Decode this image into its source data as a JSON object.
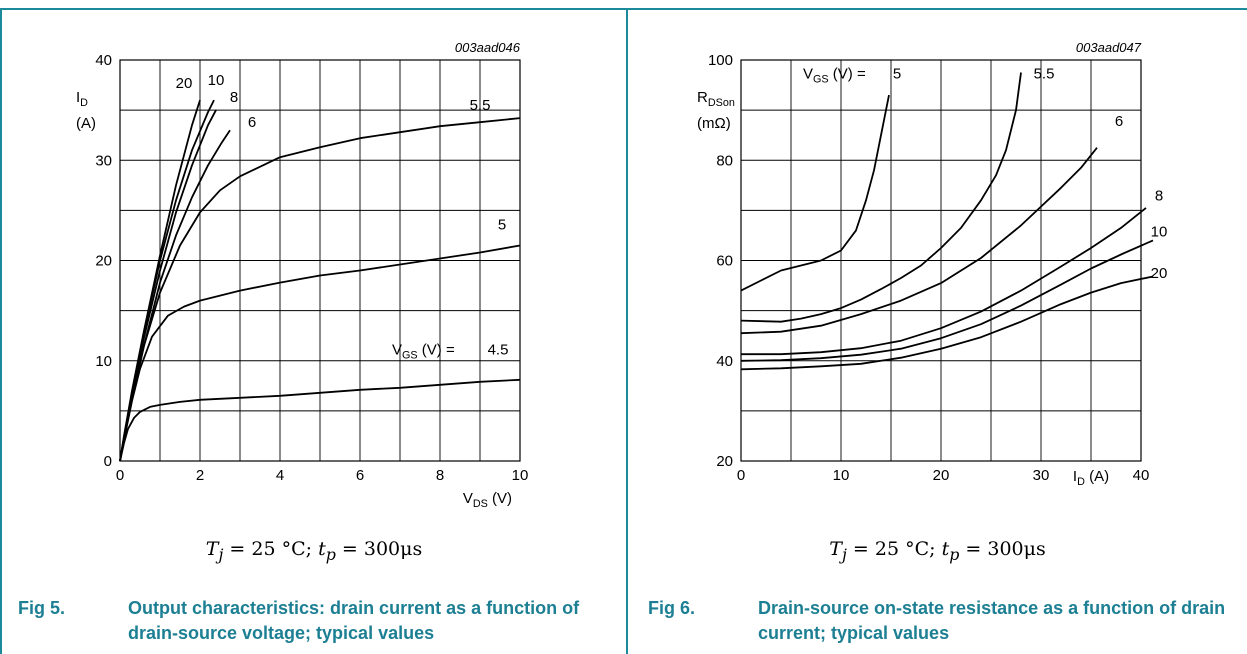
{
  "chart_data": [
    {
      "type": "line",
      "code": "003aad046",
      "xlabel": {
        "main": "V",
        "sub": "DS",
        "unit": " (V)"
      },
      "ylabel": {
        "main": "I",
        "sub": "D",
        "unit": "(A)"
      },
      "xlim": [
        0,
        10
      ],
      "ylim": [
        0,
        40
      ],
      "x_ticks": [
        "0",
        "2",
        "4",
        "6",
        "8",
        "10"
      ],
      "y_ticks": [
        "0",
        "10",
        "20",
        "30",
        "40"
      ],
      "grid": true,
      "vgs_prefix": {
        "main": "V",
        "sub": "GS",
        "unit": " (V) ="
      },
      "series": [
        {
          "name": "20",
          "x": [
            0,
            0.1,
            0.3,
            0.6,
            1.0,
            1.4,
            1.8,
            2.0
          ],
          "y": [
            0,
            2.5,
            7,
            13,
            20.5,
            27.5,
            33.5,
            36
          ]
        },
        {
          "name": "10",
          "x": [
            0,
            0.1,
            0.3,
            0.6,
            1.0,
            1.4,
            1.8,
            2.2,
            2.35
          ],
          "y": [
            0,
            2.4,
            6.8,
            12.8,
            20,
            26,
            31,
            34.8,
            36
          ]
        },
        {
          "name": "8",
          "x": [
            0,
            0.1,
            0.3,
            0.6,
            1.0,
            1.4,
            1.8,
            2.2,
            2.4
          ],
          "y": [
            0,
            2.3,
            6.5,
            12.3,
            19,
            24.8,
            29.5,
            33.5,
            35
          ]
        },
        {
          "name": "6",
          "x": [
            0,
            0.1,
            0.3,
            0.6,
            1.0,
            1.4,
            1.8,
            2.2,
            2.55,
            2.75
          ],
          "y": [
            0,
            2.2,
            6.2,
            11.5,
            17.8,
            22.5,
            26.3,
            29.5,
            31.8,
            33
          ]
        },
        {
          "name": "5.5",
          "x": [
            0,
            0.1,
            0.3,
            0.6,
            1.0,
            1.5,
            2.0,
            2.5,
            3.0,
            4.0,
            5.0,
            6.0,
            7.0,
            8.0,
            9.0,
            10.0
          ],
          "y": [
            0,
            2.2,
            6.2,
            11.5,
            16.8,
            21.5,
            24.8,
            27,
            28.4,
            30.3,
            31.3,
            32.2,
            32.8,
            33.4,
            33.8,
            34.2
          ]
        },
        {
          "name": "5",
          "x": [
            0,
            0.1,
            0.3,
            0.5,
            0.8,
            1.2,
            1.6,
            2.0,
            3.0,
            4.0,
            5.0,
            6.0,
            7.0,
            8.0,
            9.0,
            10.0
          ],
          "y": [
            0,
            2.1,
            6,
            9.2,
            12.4,
            14.5,
            15.4,
            16,
            17,
            17.8,
            18.5,
            19,
            19.6,
            20.2,
            20.8,
            21.5
          ]
        },
        {
          "name": "4.5",
          "x": [
            0,
            0.1,
            0.2,
            0.35,
            0.5,
            0.75,
            1.0,
            1.5,
            2.0,
            3.0,
            4.0,
            5.0,
            6.0,
            7.0,
            8.0,
            9.0,
            10.0
          ],
          "y": [
            0,
            1.8,
            3.2,
            4.3,
            4.9,
            5.4,
            5.6,
            5.9,
            6.1,
            6.3,
            6.5,
            6.8,
            7.1,
            7.3,
            7.6,
            7.9,
            8.1
          ]
        }
      ],
      "label_pos": {
        "20": [
          1.6,
          37.2
        ],
        "10": [
          2.4,
          37.5
        ],
        "8": [
          2.85,
          35.8
        ],
        "6": [
          3.3,
          33.3
        ],
        "5.5": [
          9.0,
          35.0
        ],
        "5": [
          9.55,
          23.1
        ],
        "4.5": [
          9.45,
          10.6
        ]
      },
      "vgs_prefix_pos": [
        6.8,
        10.6
      ]
    },
    {
      "type": "line",
      "code": "003aad047",
      "xlabel": {
        "main": "I",
        "sub": "D",
        "unit": " (A)"
      },
      "ylabel": {
        "main": "R",
        "sub": "DSon",
        "unit": "(mΩ)"
      },
      "xlim": [
        0,
        40
      ],
      "ylim": [
        20,
        100
      ],
      "x_ticks": [
        "0",
        "10",
        "20",
        "30",
        "40"
      ],
      "y_ticks": [
        "20",
        "40",
        "60",
        "80",
        "100"
      ],
      "grid": true,
      "vgs_prefix": {
        "main": "V",
        "sub": "GS",
        "unit": " (V) ="
      },
      "series": [
        {
          "name": "5",
          "x": [
            0,
            2,
            4,
            6,
            8,
            10,
            11.5,
            12.5,
            13.3,
            14.0,
            14.5,
            14.8
          ],
          "y": [
            54,
            56,
            58,
            59,
            60,
            62,
            66,
            72,
            78,
            85,
            90,
            93
          ]
        },
        {
          "name": "5.5",
          "x": [
            0,
            4,
            6,
            8,
            10,
            12,
            14,
            16,
            18,
            20,
            22,
            24,
            25.5,
            26.5,
            27.5,
            28.0
          ],
          "y": [
            48,
            47.8,
            48.4,
            49.3,
            50.5,
            52.2,
            54.3,
            56.5,
            59,
            62.5,
            66.5,
            72,
            77,
            82,
            90,
            97.5
          ]
        },
        {
          "name": "6",
          "x": [
            0,
            4,
            8,
            12,
            16,
            20,
            24,
            28,
            32,
            34,
            35.6
          ],
          "y": [
            45.5,
            45.8,
            47,
            49.3,
            52,
            55.5,
            60.5,
            67,
            74.5,
            78.5,
            82.5
          ]
        },
        {
          "name": "8",
          "x": [
            0,
            4,
            8,
            12,
            16,
            20,
            24,
            28,
            32,
            35,
            38,
            40.5
          ],
          "y": [
            41.3,
            41.3,
            41.7,
            42.5,
            44,
            46.5,
            49.8,
            54,
            58.8,
            62.5,
            66.5,
            70.5
          ]
        },
        {
          "name": "10",
          "x": [
            0,
            4,
            8,
            12,
            16,
            20,
            24,
            28,
            32,
            35,
            38,
            41.2
          ],
          "y": [
            40,
            40.1,
            40.5,
            41.2,
            42.4,
            44.5,
            47.3,
            51,
            55.2,
            58.4,
            61.2,
            64
          ]
        },
        {
          "name": "20",
          "x": [
            0,
            4,
            8,
            12,
            16,
            20,
            24,
            28,
            32,
            35,
            38,
            41.2
          ],
          "y": [
            38.3,
            38.5,
            38.9,
            39.4,
            40.6,
            42.4,
            44.7,
            47.8,
            51.3,
            53.6,
            55.5,
            56.8
          ]
        }
      ],
      "label_pos": {
        "5": [
          15.6,
          96.3
        ],
        "5.5": [
          30.3,
          96.3
        ],
        "6": [
          37.8,
          86.8
        ],
        "8": [
          41.8,
          72.0
        ],
        "10": [
          41.8,
          64.8
        ],
        "20": [
          41.8,
          56.5
        ]
      },
      "vgs_prefix_pos": [
        6.2,
        96.3
      ]
    }
  ],
  "captions": {
    "conditions_text_tj": "T",
    "conditions_sub_j": "j",
    "conditions_mid": " = 25 °C; ",
    "conditions_text_tp": "t",
    "conditions_sub_p": "p",
    "conditions_end": " = 300μs",
    "fig5_num": "Fig 5.",
    "fig5_text": "Output characteristics: drain current as a function of drain-source voltage; typical values",
    "fig6_num": "Fig 6.",
    "fig6_text": "Drain-source on-state resistance as a function of drain current; typical values"
  },
  "colors": {
    "accent": "#1c8a9a",
    "caption": "#1c7f93",
    "curve": "#000000",
    "grid": "#000000"
  }
}
